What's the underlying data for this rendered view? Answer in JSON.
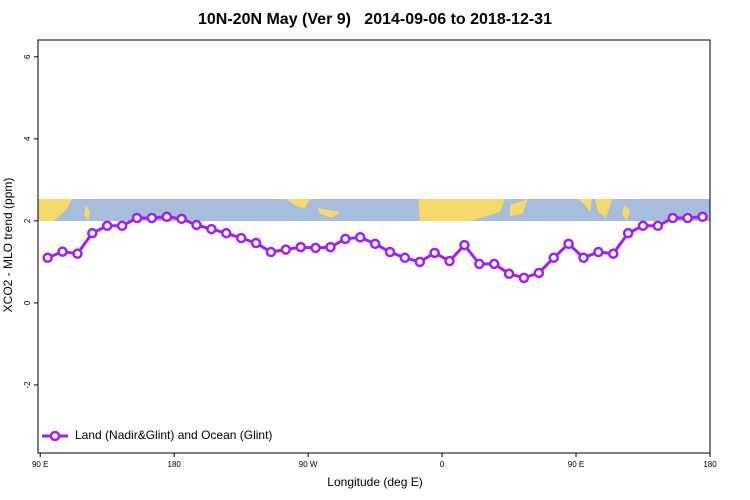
{
  "chart_data": {
    "type": "line",
    "title": "10N-20N May (Ver 9)   2014-09-06 to 2018-12-31",
    "x_label": "Longitude (deg E)",
    "y_label": "XCO2 - MLO trend (ppm)",
    "x": [
      95,
      105,
      115,
      125,
      135,
      145,
      155,
      165,
      175,
      185,
      195,
      205,
      215,
      225,
      235,
      245,
      255,
      265,
      275,
      285,
      295,
      305,
      315,
      325,
      335,
      345,
      355,
      365,
      375,
      385,
      395,
      405,
      415,
      425,
      435,
      445,
      455,
      465,
      475,
      485,
      495,
      505,
      515,
      525,
      535
    ],
    "series": [
      {
        "name": "Land (Nadir&Glint) and Ocean (Glint)",
        "color": "#a020f0",
        "values": [
          1.1,
          1.25,
          1.2,
          1.7,
          1.88,
          1.88,
          2.07,
          2.07,
          2.1,
          2.05,
          1.9,
          1.8,
          1.7,
          1.58,
          1.46,
          1.24,
          1.3,
          1.36,
          1.34,
          1.36,
          1.56,
          1.6,
          1.44,
          1.24,
          1.1,
          1.0,
          1.22,
          1.02,
          1.41,
          0.95,
          0.95,
          0.71,
          0.61,
          0.73,
          1.1,
          1.44,
          1.1,
          1.24,
          1.2,
          1.7,
          1.88,
          1.88,
          2.07,
          2.07,
          2.1
        ]
      }
    ],
    "xlim": [
      88.5,
      540
    ],
    "xticks": [
      {
        "value": 90,
        "label": "90 E"
      },
      180,
      {
        "value": 270,
        "label": "90 W"
      },
      {
        "value": 360,
        "label": "0"
      },
      {
        "value": 450,
        "label": "90 E"
      },
      {
        "value": 540,
        "label": "180"
      }
    ],
    "ylim": [
      -3.66,
      6.41
    ],
    "yticks": [
      -2,
      0,
      2,
      4,
      6
    ],
    "legend": "bottom-left"
  }
}
